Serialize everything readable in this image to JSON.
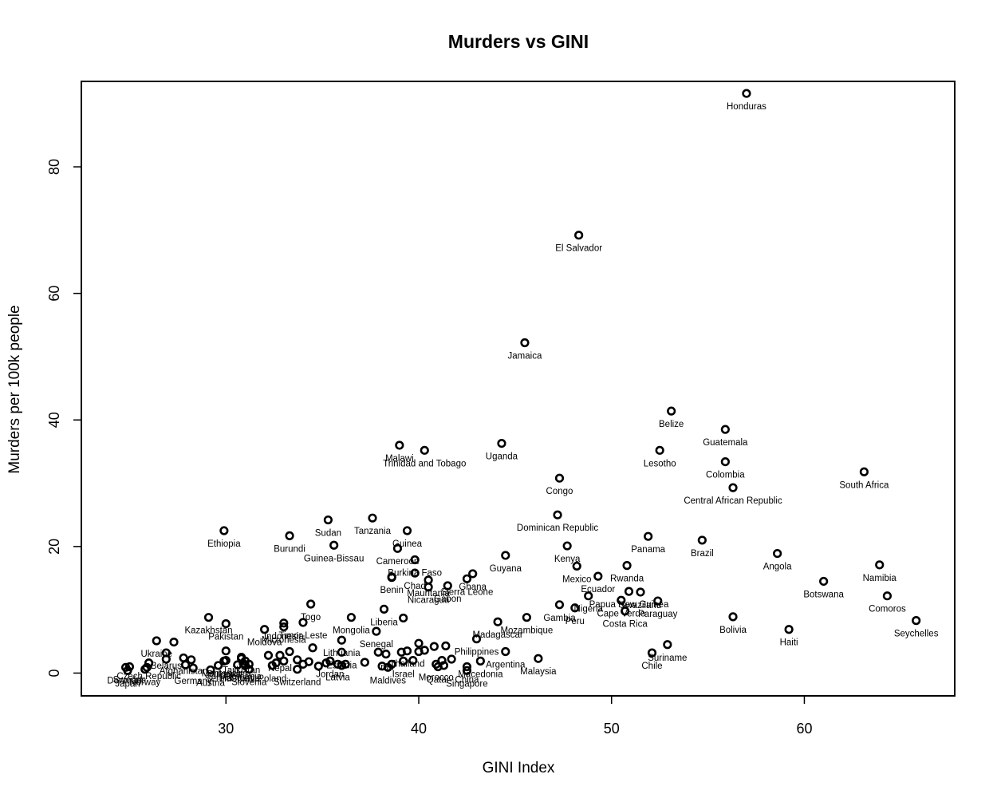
{
  "chart_data": {
    "type": "scatter",
    "title": "Murders vs GINI",
    "xlabel": "GINI Index",
    "ylabel": "Murders per 100k people",
    "xlim": [
      22.5,
      67.8
    ],
    "ylim": [
      -3.6,
      93.5
    ],
    "xticks": [
      30,
      40,
      50,
      60
    ],
    "yticks": [
      0,
      20,
      40,
      60,
      80
    ],
    "grid": false,
    "legend": "none",
    "points": [
      {
        "label": "Honduras",
        "x": 57.0,
        "y": 91.6
      },
      {
        "label": "El Salvador",
        "x": 48.3,
        "y": 69.2
      },
      {
        "label": "Jamaica",
        "x": 45.5,
        "y": 52.2
      },
      {
        "label": "Belize",
        "x": 53.1,
        "y": 41.4
      },
      {
        "label": "Guatemala",
        "x": 55.9,
        "y": 38.5
      },
      {
        "label": "Lesotho",
        "x": 52.5,
        "y": 35.2
      },
      {
        "label": "Colombia",
        "x": 55.9,
        "y": 33.4
      },
      {
        "label": "South Africa",
        "x": 63.1,
        "y": 31.8
      },
      {
        "label": "Central African Republic",
        "x": 56.3,
        "y": 29.3
      },
      {
        "label": "Uganda",
        "x": 44.3,
        "y": 36.3
      },
      {
        "label": "Malawi",
        "x": 39.0,
        "y": 36.0
      },
      {
        "label": "Trinidad and Tobago",
        "x": 40.3,
        "y": 35.2
      },
      {
        "label": "Congo",
        "x": 47.3,
        "y": 30.8
      },
      {
        "label": "Dominican Republic",
        "x": 47.2,
        "y": 25.0
      },
      {
        "label": "Sudan",
        "x": 35.3,
        "y": 24.2
      },
      {
        "label": "Tanzania",
        "x": 37.6,
        "y": 24.5
      },
      {
        "label": "Ethiopia",
        "x": 29.9,
        "y": 22.5
      },
      {
        "label": "Burundi",
        "x": 33.3,
        "y": 21.7
      },
      {
        "label": "Guinea",
        "x": 39.4,
        "y": 22.5
      },
      {
        "label": "Guinea-Bissau",
        "x": 35.6,
        "y": 20.2
      },
      {
        "label": "Panama",
        "x": 51.9,
        "y": 21.6
      },
      {
        "label": "Brazil",
        "x": 54.7,
        "y": 21.0
      },
      {
        "label": "Kenya",
        "x": 47.7,
        "y": 20.1
      },
      {
        "label": "Angola",
        "x": 58.6,
        "y": 18.9
      },
      {
        "label": "Cameroon",
        "x": 38.9,
        "y": 19.7
      },
      {
        "label": "Guyana",
        "x": 44.5,
        "y": 18.6
      },
      {
        "label": "Namibia",
        "x": 63.9,
        "y": 17.1
      },
      {
        "label": "Burkina Faso",
        "x": 39.8,
        "y": 17.9
      },
      {
        "label": "Mexico",
        "x": 48.2,
        "y": 16.9
      },
      {
        "label": "Rwanda",
        "x": 50.8,
        "y": 17.0
      },
      {
        "label": "Botswana",
        "x": 61.0,
        "y": 14.5
      },
      {
        "label": "Ghana",
        "x": 42.8,
        "y": 15.7
      },
      {
        "label": "Chad",
        "x": 39.8,
        "y": 15.8
      },
      {
        "label": "Benin",
        "x": 38.6,
        "y": 15.2
      },
      {
        "label": "Mauritania",
        "x": 40.5,
        "y": 14.7
      },
      {
        "label": "Sierra Leone",
        "x": 42.5,
        "y": 14.9
      },
      {
        "label": "Nicaragua",
        "x": 40.5,
        "y": 13.6
      },
      {
        "label": "Gabon",
        "x": 41.5,
        "y": 13.8
      },
      {
        "label": "Ecuador",
        "x": 49.3,
        "y": 15.3
      },
      {
        "label": "Comoros",
        "x": 64.3,
        "y": 12.2
      },
      {
        "label": "Papua New Guinea",
        "x": 50.9,
        "y": 12.9
      },
      {
        "label": "Swaziland",
        "x": 51.5,
        "y": 12.8
      },
      {
        "label": "Nigeria",
        "x": 48.8,
        "y": 12.2
      },
      {
        "label": "Cape Verde",
        "x": 50.5,
        "y": 11.5
      },
      {
        "label": "Paraguay",
        "x": 52.4,
        "y": 11.4
      },
      {
        "label": "Peru",
        "x": 48.1,
        "y": 10.3
      },
      {
        "label": "Costa Rica",
        "x": 50.7,
        "y": 9.8
      },
      {
        "label": "Togo",
        "x": 34.4,
        "y": 10.9
      },
      {
        "label": "Gambia",
        "x": 47.3,
        "y": 10.8
      },
      {
        "label": "Liberia",
        "x": 38.2,
        "y": 10.1
      },
      {
        "label": "Mozambique",
        "x": 45.6,
        "y": 8.8
      },
      {
        "label": "Bolivia",
        "x": 56.3,
        "y": 8.9
      },
      {
        "label": "Seychelles",
        "x": 65.8,
        "y": 8.3
      },
      {
        "label": "Haiti",
        "x": 59.2,
        "y": 6.9
      },
      {
        "label": "Kazakhstan",
        "x": 29.1,
        "y": 8.8
      },
      {
        "label": "Pakistan",
        "x": 30.0,
        "y": 7.8
      },
      {
        "label": "Moldova",
        "x": 32.0,
        "y": 6.9
      },
      {
        "label": "Indonesia",
        "x": 33.0,
        "y": 7.9
      },
      {
        "label": "Micronesia",
        "x": 33.0,
        "y": 7.3
      },
      {
        "label": "Timor-Leste",
        "x": 34.0,
        "y": 8.0
      },
      {
        "label": "Mongolia",
        "x": 36.5,
        "y": 8.8
      },
      {
        "label": "Senegal",
        "x": 37.8,
        "y": 6.6
      },
      {
        "label": "Lithuania",
        "x": 36.0,
        "y": 5.2
      },
      {
        "label": "Madagascar",
        "x": 44.1,
        "y": 8.1
      },
      {
        "label": "Suriname",
        "x": 52.9,
        "y": 4.5
      },
      {
        "label": "Chile",
        "x": 52.1,
        "y": 3.2
      },
      {
        "label": "Malaysia",
        "x": 46.2,
        "y": 2.3
      },
      {
        "label": "Ukraine",
        "x": 26.4,
        "y": 5.1
      },
      {
        "label": "Estonia",
        "x": 36.0,
        "y": 3.3
      },
      {
        "label": "Philippines",
        "x": 43.0,
        "y": 5.4
      },
      {
        "label": "Argentina",
        "x": 44.5,
        "y": 3.4
      },
      {
        "label": "Thailand",
        "x": 39.4,
        "y": 3.5
      },
      {
        "label": "Latvia",
        "x": 35.8,
        "y": 1.4
      },
      {
        "label": "Israel",
        "x": 39.2,
        "y": 1.9
      },
      {
        "label": "Macedonia",
        "x": 43.2,
        "y": 1.9
      },
      {
        "label": "Morocco",
        "x": 40.9,
        "y": 1.4
      },
      {
        "label": "China",
        "x": 42.5,
        "y": 1.0
      },
      {
        "label": "Singapore",
        "x": 42.5,
        "y": 0.4
      },
      {
        "label": "Montenegro",
        "x": 30.0,
        "y": 2.0
      },
      {
        "label": "Jordan",
        "x": 35.4,
        "y": 1.9
      },
      {
        "label": "Belarus",
        "x": 26.9,
        "y": 3.2
      },
      {
        "label": "Czech Republic",
        "x": 26.0,
        "y": 1.6
      },
      {
        "label": "Afghanistan",
        "x": 27.8,
        "y": 2.4
      },
      {
        "label": "Denmark",
        "x": 24.8,
        "y": 0.9
      },
      {
        "label": "Sweden",
        "x": 25.0,
        "y": 1.0
      },
      {
        "label": "Japan",
        "x": 24.9,
        "y": 0.4
      },
      {
        "label": "Norway",
        "x": 25.8,
        "y": 0.6
      },
      {
        "label": "Germany",
        "x": 28.3,
        "y": 0.8
      },
      {
        "label": "Austria",
        "x": 29.2,
        "y": 0.5
      },
      {
        "label": "Slovenia",
        "x": 31.2,
        "y": 0.6
      },
      {
        "label": "Switzerland",
        "x": 33.7,
        "y": 0.6
      },
      {
        "label": "Bulgaria",
        "x": 29.9,
        "y": 1.9
      },
      {
        "label": "Romania",
        "x": 30.9,
        "y": 1.5
      },
      {
        "label": "Hungary",
        "x": 30.6,
        "y": 1.3
      },
      {
        "label": "Croatia",
        "x": 31.0,
        "y": 1.2
      },
      {
        "label": "Serbia",
        "x": 29.6,
        "y": 1.2
      },
      {
        "label": "Poland",
        "x": 32.4,
        "y": 1.2
      },
      {
        "label": "Maldives",
        "x": 38.4,
        "y": 0.9
      },
      {
        "label": "Qatar",
        "x": 41.0,
        "y": 1.0
      },
      {
        "label": "Iran",
        "x": 38.3,
        "y": 3.0
      },
      {
        "label": "Nepal",
        "x": 32.8,
        "y": 2.8
      },
      {
        "label": "Tajikistan",
        "x": 30.8,
        "y": 2.5
      }
    ],
    "extra_points": [
      {
        "x": 25.9,
        "y": 0.9
      },
      {
        "x": 26.9,
        "y": 2.2
      },
      {
        "x": 27.3,
        "y": 4.9
      },
      {
        "x": 27.9,
        "y": 1.3
      },
      {
        "x": 28.2,
        "y": 2.1
      },
      {
        "x": 30.0,
        "y": 3.5
      },
      {
        "x": 30.8,
        "y": 2.3
      },
      {
        "x": 31.0,
        "y": 1.9
      },
      {
        "x": 31.2,
        "y": 1.4
      },
      {
        "x": 32.2,
        "y": 2.8
      },
      {
        "x": 32.6,
        "y": 1.6
      },
      {
        "x": 33.0,
        "y": 1.9
      },
      {
        "x": 33.3,
        "y": 3.4
      },
      {
        "x": 33.7,
        "y": 2.1
      },
      {
        "x": 34.0,
        "y": 1.4
      },
      {
        "x": 34.3,
        "y": 1.8
      },
      {
        "x": 34.5,
        "y": 4.0
      },
      {
        "x": 34.8,
        "y": 1.1
      },
      {
        "x": 35.2,
        "y": 1.6
      },
      {
        "x": 35.4,
        "y": 1.9
      },
      {
        "x": 36.0,
        "y": 1.2
      },
      {
        "x": 36.2,
        "y": 1.4
      },
      {
        "x": 37.2,
        "y": 1.7
      },
      {
        "x": 37.9,
        "y": 3.3
      },
      {
        "x": 38.1,
        "y": 1.1
      },
      {
        "x": 38.6,
        "y": 1.4
      },
      {
        "x": 39.1,
        "y": 3.3
      },
      {
        "x": 39.7,
        "y": 2.0
      },
      {
        "x": 40.0,
        "y": 4.7
      },
      {
        "x": 40.0,
        "y": 3.4
      },
      {
        "x": 40.3,
        "y": 3.6
      },
      {
        "x": 40.8,
        "y": 4.2
      },
      {
        "x": 41.2,
        "y": 2.0
      },
      {
        "x": 41.3,
        "y": 1.2
      },
      {
        "x": 41.4,
        "y": 4.3
      },
      {
        "x": 41.7,
        "y": 2.2
      },
      {
        "x": 39.2,
        "y": 8.7
      },
      {
        "x": 38.6,
        "y": 15.1
      }
    ]
  }
}
